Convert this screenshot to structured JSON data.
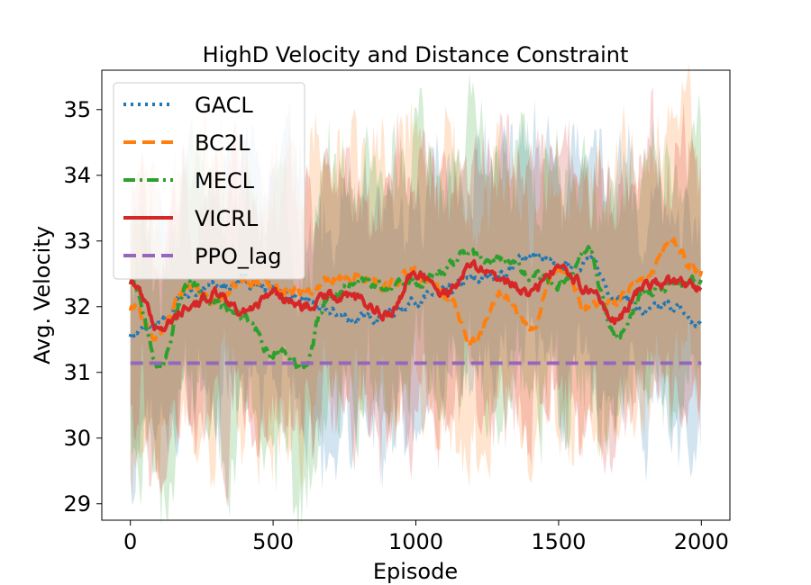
{
  "chart_data": {
    "type": "line",
    "title": "HighD Velocity and Distance Constraint",
    "xlabel": "Episode",
    "ylabel": "Avg. Velocity",
    "xlim": [
      -100,
      2100
    ],
    "ylim": [
      28.75,
      35.6
    ],
    "xticks": [
      0,
      500,
      1000,
      1500,
      2000
    ],
    "yticks": [
      29,
      30,
      31,
      32,
      33,
      34,
      35
    ],
    "legend_position": "upper-left",
    "series": [
      {
        "name": "GACL",
        "color": "#1f77b4",
        "style": "dotted",
        "x": [
          0,
          100,
          200,
          300,
          400,
          500,
          600,
          700,
          800,
          900,
          1000,
          1100,
          1200,
          1300,
          1400,
          1500,
          1600,
          1700,
          1800,
          1900,
          2000
        ],
        "values": [
          31.6,
          31.7,
          32.2,
          32.3,
          32.4,
          32.3,
          32.1,
          31.9,
          31.8,
          31.9,
          32.1,
          32.2,
          32.4,
          32.5,
          32.8,
          32.6,
          32.7,
          32.2,
          31.9,
          32.0,
          31.7
        ],
        "band": 1.6
      },
      {
        "name": "BC2L",
        "color": "#ff7f0e",
        "style": "dashed",
        "x": [
          0,
          100,
          200,
          300,
          400,
          500,
          600,
          700,
          800,
          900,
          1000,
          1100,
          1200,
          1300,
          1400,
          1500,
          1600,
          1700,
          1800,
          1900,
          2000
        ],
        "values": [
          32.0,
          31.6,
          32.3,
          32.1,
          32.4,
          32.3,
          32.2,
          32.4,
          32.5,
          32.3,
          32.5,
          32.2,
          31.5,
          32.2,
          31.7,
          32.6,
          32.0,
          32.1,
          32.5,
          32.9,
          32.5
        ],
        "band": 1.9
      },
      {
        "name": "MECL",
        "color": "#2ca02c",
        "style": "dashdot",
        "x": [
          0,
          100,
          200,
          300,
          400,
          500,
          600,
          700,
          800,
          900,
          1000,
          1100,
          1200,
          1300,
          1400,
          1500,
          1600,
          1700,
          1800,
          1900,
          2000
        ],
        "values": [
          32.4,
          31.1,
          32.3,
          32.1,
          31.8,
          31.3,
          31.1,
          32.2,
          32.4,
          32.3,
          32.4,
          32.6,
          32.8,
          32.7,
          32.5,
          32.3,
          32.9,
          31.5,
          32.2,
          32.3,
          32.4
        ],
        "band": 1.7
      },
      {
        "name": "VICRL",
        "color": "#d62728",
        "style": "solid",
        "x": [
          0,
          100,
          200,
          300,
          400,
          500,
          600,
          700,
          800,
          900,
          1000,
          1100,
          1200,
          1300,
          1400,
          1500,
          1600,
          1700,
          1800,
          1900,
          2000
        ],
        "values": [
          32.4,
          31.7,
          32.0,
          32.2,
          31.9,
          32.2,
          32.0,
          32.2,
          32.1,
          31.9,
          32.5,
          32.2,
          32.6,
          32.4,
          32.2,
          32.6,
          32.3,
          31.8,
          32.3,
          32.4,
          32.3
        ],
        "band": 1.8
      },
      {
        "name": "PPO_lag",
        "color": "#9467bd",
        "style": "dashed",
        "x": [
          0,
          2000
        ],
        "values": [
          31.14,
          31.14
        ],
        "band": 0
      }
    ]
  }
}
